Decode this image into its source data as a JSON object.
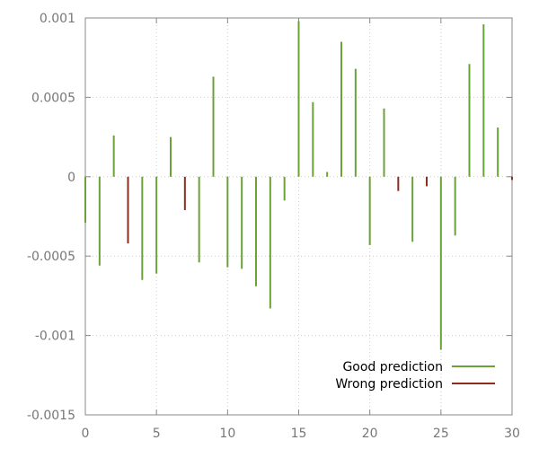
{
  "chart_data": {
    "type": "bar",
    "title": "",
    "xlabel": "",
    "ylabel": "",
    "xlim": [
      0,
      30
    ],
    "ylim": [
      -0.0015,
      0.001
    ],
    "grid": true,
    "legend_position": "bottom-right",
    "x_ticks": [
      0,
      5,
      10,
      15,
      20,
      25,
      30
    ],
    "x_tick_labels": [
      "0",
      "5",
      "10",
      "15",
      "20",
      "25",
      "30"
    ],
    "y_ticks": [
      0.001,
      0.0005,
      0,
      -0.0005,
      -0.001,
      -0.0015
    ],
    "y_tick_labels": [
      "0.001",
      "0.0005",
      "0",
      "-0.0005",
      "-0.001",
      "-0.0015"
    ],
    "legend": [
      {
        "series": "good",
        "label": "Good prediction"
      },
      {
        "series": "wrong",
        "label": "Wrong prediction"
      }
    ],
    "colors": {
      "good": "#6aa238",
      "wrong": "#8b2d1f"
    },
    "points": [
      {
        "x": 0,
        "y": -0.00029,
        "series": "good"
      },
      {
        "x": 1,
        "y": -0.00056,
        "series": "good"
      },
      {
        "x": 2,
        "y": 0.00026,
        "series": "good"
      },
      {
        "x": 3,
        "y": -0.00042,
        "series": "wrong"
      },
      {
        "x": 4,
        "y": -0.00065,
        "series": "good"
      },
      {
        "x": 5,
        "y": -0.00061,
        "series": "good"
      },
      {
        "x": 6,
        "y": 0.00025,
        "series": "good"
      },
      {
        "x": 7,
        "y": -0.00021,
        "series": "wrong"
      },
      {
        "x": 8,
        "y": -0.00054,
        "series": "good"
      },
      {
        "x": 9,
        "y": 0.00063,
        "series": "good"
      },
      {
        "x": 10,
        "y": -0.00057,
        "series": "good"
      },
      {
        "x": 11,
        "y": -0.00058,
        "series": "good"
      },
      {
        "x": 12,
        "y": -0.00069,
        "series": "good"
      },
      {
        "x": 13,
        "y": -0.00083,
        "series": "good"
      },
      {
        "x": 14,
        "y": -0.00015,
        "series": "good"
      },
      {
        "x": 15,
        "y": 0.00098,
        "series": "good"
      },
      {
        "x": 16,
        "y": 0.00047,
        "series": "good"
      },
      {
        "x": 17,
        "y": 3e-05,
        "series": "good"
      },
      {
        "x": 18,
        "y": 0.00085,
        "series": "good"
      },
      {
        "x": 19,
        "y": 0.00068,
        "series": "good"
      },
      {
        "x": 20,
        "y": -0.00043,
        "series": "good"
      },
      {
        "x": 21,
        "y": 0.00043,
        "series": "good"
      },
      {
        "x": 22,
        "y": -9e-05,
        "series": "wrong"
      },
      {
        "x": 23,
        "y": -0.00041,
        "series": "good"
      },
      {
        "x": 24,
        "y": -6e-05,
        "series": "wrong"
      },
      {
        "x": 25,
        "y": -0.00109,
        "series": "good"
      },
      {
        "x": 26,
        "y": -0.00037,
        "series": "good"
      },
      {
        "x": 27,
        "y": 0.00071,
        "series": "good"
      },
      {
        "x": 28,
        "y": 0.00096,
        "series": "good"
      },
      {
        "x": 29,
        "y": 0.00031,
        "series": "good"
      },
      {
        "x": 30,
        "y": -2e-05,
        "series": "wrong"
      }
    ]
  }
}
